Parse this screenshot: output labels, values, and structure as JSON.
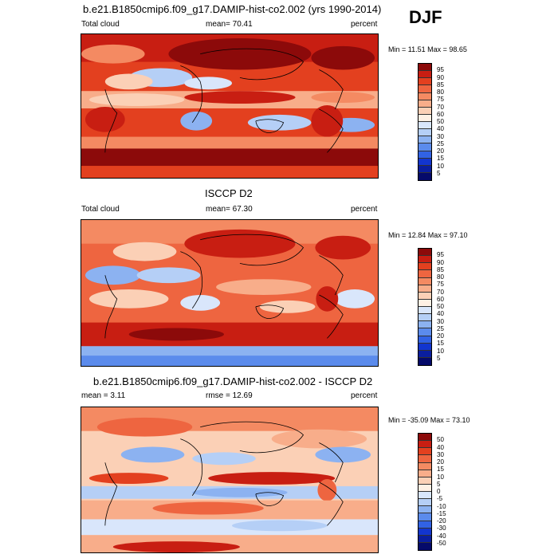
{
  "season": "DJF",
  "panels": [
    {
      "title": "b.e21.B1850cmip6.f09_g17.DAMIP-hist-co2.002 (yrs 1990-2014)",
      "left_label": "Total cloud",
      "center_label": "mean=  70.41",
      "units": "percent",
      "minmax": "Min =  11.51 Max =  98.65",
      "colorbar_labels": [
        "95",
        "90",
        "85",
        "80",
        "75",
        "70",
        "60",
        "50",
        "40",
        "30",
        "25",
        "20",
        "15",
        "10",
        "5"
      ],
      "colorbar_colors": [
        "#8c0a0a",
        "#c81e12",
        "#e3401f",
        "#ee6540",
        "#f48a62",
        "#f8ad8a",
        "#fbd0b6",
        "#fef0e4",
        "#d9e6fb",
        "#b5cff6",
        "#8cb2f1",
        "#5b8bec",
        "#3162e4",
        "#1235cf",
        "#0a1e9e",
        "#050a6a"
      ]
    },
    {
      "title": "ISCCP D2",
      "left_label": "Total cloud",
      "center_label": "mean=  67.30",
      "units": "percent",
      "minmax": "Min =  12.84 Max =  97.10",
      "colorbar_labels": [
        "95",
        "90",
        "85",
        "80",
        "75",
        "70",
        "60",
        "50",
        "40",
        "30",
        "25",
        "20",
        "15",
        "10",
        "5"
      ],
      "colorbar_colors": [
        "#8c0a0a",
        "#c81e12",
        "#e3401f",
        "#ee6540",
        "#f48a62",
        "#f8ad8a",
        "#fbd0b6",
        "#fef0e4",
        "#d9e6fb",
        "#b5cff6",
        "#8cb2f1",
        "#5b8bec",
        "#3162e4",
        "#1235cf",
        "#0a1e9e",
        "#050a6a"
      ]
    },
    {
      "title": "b.e21.B1850cmip6.f09_g17.DAMIP-hist-co2.002 - ISCCP D2",
      "left_label": "mean =   3.11",
      "center_label": "rmse =  12.69",
      "units": "percent",
      "minmax": "Min = -35.09 Max =  73.10",
      "colorbar_labels": [
        "50",
        "40",
        "30",
        "20",
        "15",
        "10",
        "5",
        "0",
        "-5",
        "-10",
        "-15",
        "-20",
        "-30",
        "-40",
        "-50"
      ],
      "colorbar_colors": [
        "#8c0a0a",
        "#c81e12",
        "#e3401f",
        "#ee6540",
        "#f48a62",
        "#f8ad8a",
        "#fbd0b6",
        "#fef0e4",
        "#d9e6fb",
        "#b5cff6",
        "#8cb2f1",
        "#5b8bec",
        "#3162e4",
        "#1235cf",
        "#0a1e9e",
        "#050a6a"
      ]
    }
  ]
}
